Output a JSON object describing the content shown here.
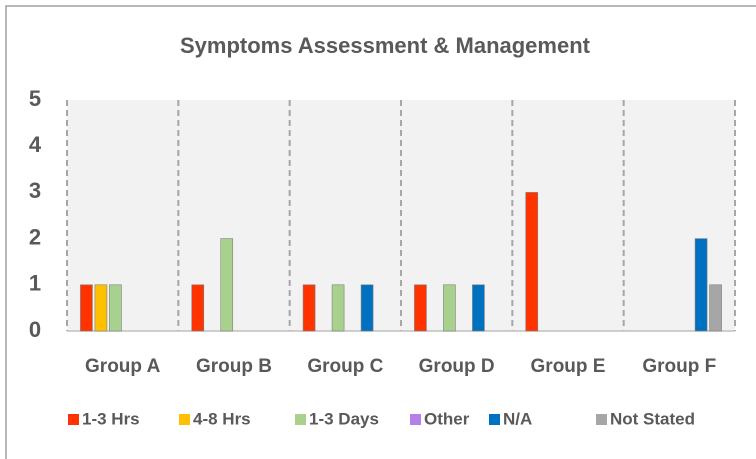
{
  "chart_data": {
    "type": "bar",
    "title": "Symptoms Assessment & Management",
    "categories": [
      "Group A",
      "Group B",
      "Group C",
      "Group D",
      "Group E",
      "Group F"
    ],
    "series": [
      {
        "name": "1-3 Hrs",
        "color": "#ff3300",
        "values": [
          1,
          1,
          1,
          1,
          3,
          0
        ]
      },
      {
        "name": "4-8 Hrs",
        "color": "#ffc000",
        "values": [
          1,
          0,
          0,
          0,
          0,
          0
        ]
      },
      {
        "name": "1-3 Days",
        "color": "#a9d18e",
        "values": [
          1,
          2,
          1,
          1,
          0,
          0
        ]
      },
      {
        "name": "Other",
        "color": "#b580e8",
        "values": [
          0,
          0,
          0,
          0,
          0,
          0
        ]
      },
      {
        "name": "N/A",
        "color": "#0070c0",
        "values": [
          0,
          0,
          1,
          1,
          0,
          2
        ]
      },
      {
        "name": "Not Stated",
        "color": "#a6a6a6",
        "values": [
          0,
          0,
          0,
          0,
          0,
          1
        ]
      }
    ],
    "ylim": [
      0,
      5
    ],
    "yticks": [
      0,
      1,
      2,
      3,
      4,
      5
    ],
    "grid": false,
    "legend": "bottom"
  }
}
